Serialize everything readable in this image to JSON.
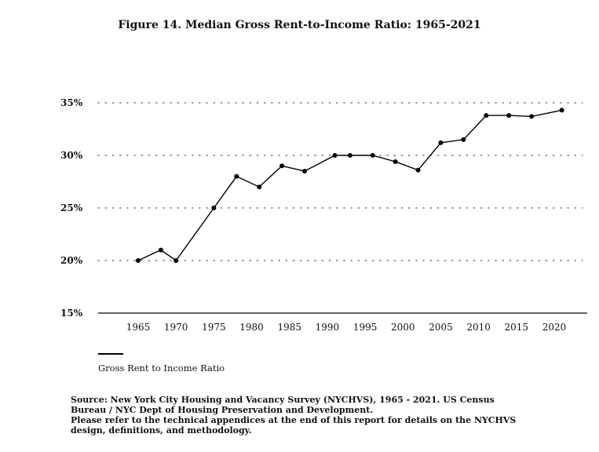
{
  "chart_data": {
    "type": "line",
    "title": "Figure 14. Median Gross Rent-to-Income Ratio: 1965-2021",
    "xlabel": "",
    "ylabel": "",
    "x_ticks": [
      1965,
      1970,
      1975,
      1980,
      1985,
      1990,
      1995,
      2000,
      2005,
      2010,
      2015,
      2020
    ],
    "y_ticks": [
      "15%",
      "20%",
      "25%",
      "30%",
      "35%"
    ],
    "ylim": [
      15,
      35
    ],
    "xlim": [
      1960,
      2024
    ],
    "grid": "horizontal dotted",
    "legend_position": "bottom-left",
    "series": [
      {
        "name": "Gross Rent to Income Ratio",
        "color": "#000000",
        "x": [
          1965,
          1968,
          1970,
          1975,
          1978,
          1981,
          1984,
          1987,
          1991,
          1993,
          1996,
          1999,
          2002,
          2005,
          2008,
          2011,
          2014,
          2017,
          2021
        ],
        "y": [
          20.0,
          21.0,
          20.0,
          25.0,
          28.0,
          27.0,
          29.0,
          28.5,
          30.0,
          30.0,
          30.0,
          29.4,
          28.6,
          31.2,
          31.5,
          33.8,
          33.8,
          33.7,
          34.3
        ]
      }
    ]
  },
  "legend": {
    "label": "Gross Rent to Income Ratio"
  },
  "source": {
    "lines": [
      "Source: New York City Housing and Vacancy Survey (NYCHVS), 1965 - 2021. US Census",
      "Bureau / NYC Dept of Housing Preservation and Development.",
      "Please refer to the technical appendices at the end of this report for details on the NYCHVS",
      "design, definitions, and methodology."
    ]
  }
}
